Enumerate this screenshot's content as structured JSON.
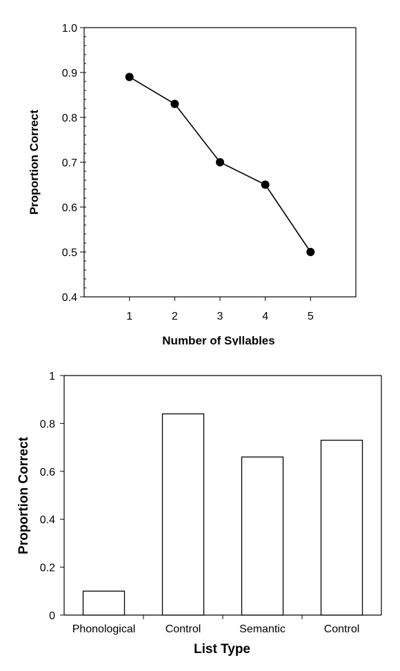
{
  "chart_data": [
    {
      "type": "line",
      "title": "",
      "xlabel": "Number of Syllables",
      "ylabel": "Proportion Correct",
      "x": [
        1,
        2,
        3,
        4,
        5
      ],
      "series": [
        {
          "values": [
            0.89,
            0.83,
            0.7,
            0.65,
            0.5
          ]
        }
      ],
      "xlim": [
        0,
        6
      ],
      "ylim": [
        0.4,
        1.0
      ],
      "xticks": [
        "1",
        "2",
        "3",
        "4",
        "5"
      ],
      "yticks": [
        "0.4",
        "0.5",
        "0.6",
        "0.7",
        "0.8",
        "0.9",
        "1.0"
      ],
      "grid": false
    },
    {
      "type": "bar",
      "title": "",
      "xlabel": "List Type",
      "ylabel": "Proportion Correct",
      "categories": [
        "Phonological",
        "Control",
        "Semantic",
        "Control"
      ],
      "values": [
        0.1,
        0.84,
        0.66,
        0.73
      ],
      "ylim": [
        0,
        1
      ],
      "yticks": [
        "0",
        "0.2",
        "0.4",
        "0.6",
        "0.8",
        "1"
      ],
      "grid": false
    }
  ]
}
